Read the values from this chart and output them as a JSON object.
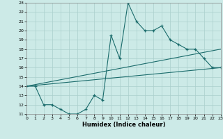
{
  "xlabel": "Humidex (Indice chaleur)",
  "bg_color": "#cceae7",
  "grid_color": "#aacfcc",
  "line_color": "#1a6b6b",
  "x_min": 0,
  "x_max": 23,
  "y_min": 11,
  "y_max": 23,
  "line1_x": [
    0,
    1,
    2,
    3,
    4,
    5,
    6,
    7,
    8,
    9,
    10,
    11,
    12,
    13,
    14,
    15,
    16,
    17,
    18,
    19,
    20,
    21,
    22,
    23
  ],
  "line1_y": [
    14,
    14,
    12,
    12,
    11.5,
    11,
    11,
    11.5,
    13,
    12.5,
    19.5,
    17,
    23,
    21,
    20,
    20,
    20.5,
    19,
    18.5,
    18,
    18,
    17,
    16,
    16
  ],
  "line2_x": [
    0,
    23
  ],
  "line2_y": [
    14,
    16
  ],
  "line3_x": [
    0,
    23
  ],
  "line3_y": [
    14,
    18
  ],
  "yticks": [
    11,
    12,
    13,
    14,
    15,
    16,
    17,
    18,
    19,
    20,
    21,
    22,
    23
  ],
  "xticks": [
    0,
    1,
    2,
    3,
    4,
    5,
    6,
    7,
    8,
    9,
    10,
    11,
    12,
    13,
    14,
    15,
    16,
    17,
    18,
    19,
    20,
    21,
    22,
    23
  ]
}
